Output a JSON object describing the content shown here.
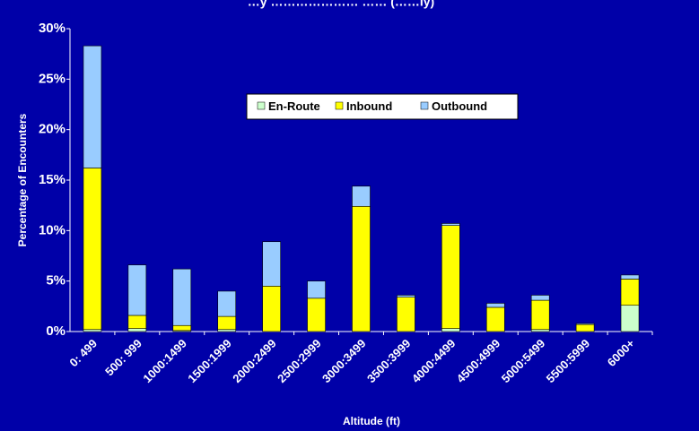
{
  "colors": {
    "background": "#0000A8",
    "en_route": "#CCFFCC",
    "inbound": "#FFFF00",
    "outbound": "#99CCFF"
  },
  "chart_data": {
    "type": "bar",
    "stacked": true,
    "title": "…y ………………… …… (……ly)",
    "xlabel": "Altitude (ft)",
    "ylabel": "Percentage of Encounters",
    "ylim": [
      0,
      30
    ],
    "yticks": [
      "0%",
      "5%",
      "10%",
      "15%",
      "20%",
      "25%",
      "30%"
    ],
    "grid": false,
    "legend_position": "top-center",
    "categories": [
      "0: 499",
      "500: 999",
      "1000:1499",
      "1500:1999",
      "2000:2499",
      "2500:2999",
      "3000:3499",
      "3500:3999",
      "4000:4499",
      "4500:4999",
      "5000:5499",
      "5500:5999",
      "6000+"
    ],
    "series": [
      {
        "name": "En-Route",
        "values": [
          0.2,
          0.3,
          0.1,
          0.2,
          0,
          0,
          0,
          0,
          0.3,
          0,
          0.2,
          0,
          2.6
        ]
      },
      {
        "name": "Inbound",
        "values": [
          16.0,
          1.3,
          0.5,
          1.3,
          4.5,
          3.3,
          12.4,
          3.4,
          10.2,
          2.4,
          2.9,
          0.7,
          2.6
        ]
      },
      {
        "name": "Outbound",
        "values": [
          12.1,
          5.0,
          5.6,
          2.5,
          4.4,
          1.7,
          2.0,
          0.2,
          0.2,
          0.4,
          0.5,
          0.1,
          0.4
        ]
      }
    ]
  }
}
